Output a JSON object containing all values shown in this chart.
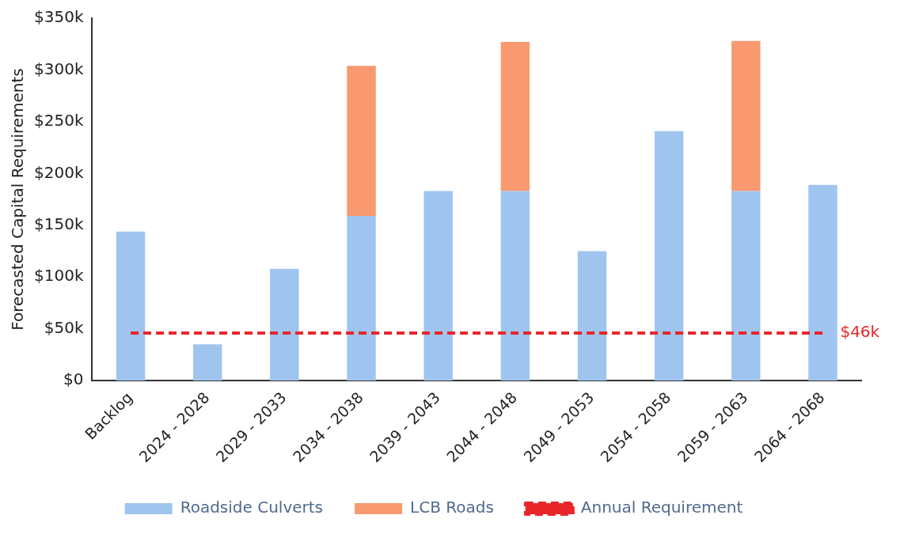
{
  "chart_data": {
    "type": "bar",
    "ylabel": "Forecasted Capital Requirements",
    "categories": [
      "Backlog",
      "2024 - 2028",
      "2029 - 2033",
      "2034 - 2038",
      "2039 - 2043",
      "2044 - 2048",
      "2049 - 2053",
      "2054 - 2058",
      "2059 - 2063",
      "2064 - 2068"
    ],
    "stacked": true,
    "series": [
      {
        "name": "Roadside Culverts",
        "color": "#9fc5ef",
        "values": [
          144,
          35,
          108,
          159,
          183,
          183,
          125,
          241,
          183,
          189
        ]
      },
      {
        "name": "LCB Roads",
        "color": "#f8996f",
        "values": [
          null,
          null,
          null,
          145,
          null,
          144,
          null,
          null,
          145,
          null
        ]
      },
      {
        "name": "Annual Requirement",
        "type": "line",
        "color": "#e8262a",
        "line_style": "dashed",
        "values": [
          46,
          46,
          46,
          46,
          46,
          46,
          46,
          46,
          46,
          46
        ]
      }
    ],
    "ylim": [
      0,
      350
    ],
    "yticks": [
      {
        "value": 0,
        "label": "$0"
      },
      {
        "value": 50,
        "label": "$50k"
      },
      {
        "value": 100,
        "label": "$100k"
      },
      {
        "value": 150,
        "label": "$150k"
      },
      {
        "value": 200,
        "label": "$200k"
      },
      {
        "value": 250,
        "label": "$250k"
      },
      {
        "value": 300,
        "label": "$300k"
      },
      {
        "value": 350,
        "label": "$350k"
      }
    ],
    "annotations": [
      {
        "text": "$46k",
        "x": "2064 - 2068",
        "y": 46
      }
    ],
    "grid": false,
    "legend": "bottom"
  }
}
